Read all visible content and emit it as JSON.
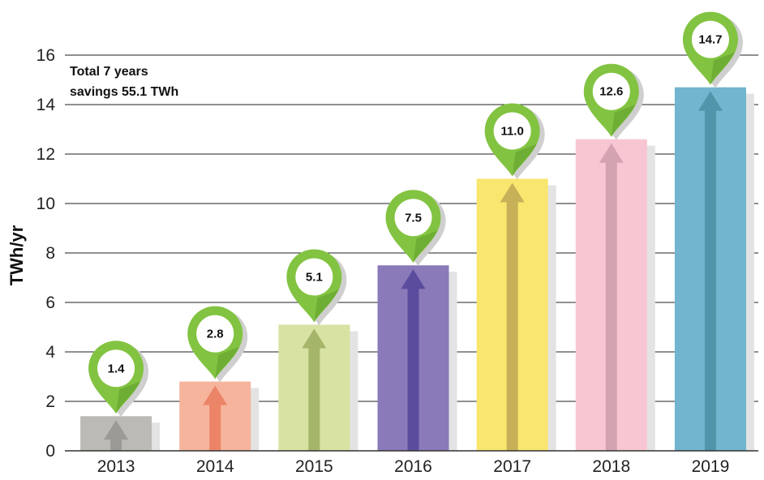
{
  "chart_data": {
    "type": "bar",
    "title": "",
    "xlabel": "",
    "ylabel": "TWh/yr",
    "ylim": [
      0,
      16
    ],
    "yticks": [
      "0",
      "2",
      "4",
      "6",
      "8",
      "10",
      "12",
      "14",
      "16"
    ],
    "grid": true,
    "categories": [
      "2013",
      "2014",
      "2015",
      "2016",
      "2017",
      "2018",
      "2019"
    ],
    "values": [
      1.4,
      2.8,
      5.1,
      7.5,
      11.0,
      12.6,
      14.7
    ],
    "data_labels": [
      "1.4",
      "2.8",
      "5.1",
      "7.5",
      "11.0",
      "12.6",
      "14.7"
    ],
    "annotation": [
      "Total 7 years",
      "savings 55.1 TWh"
    ],
    "colors": {
      "bars": [
        "#bcbab4",
        "#f6b49c",
        "#d8e2a2",
        "#8a7ab9",
        "#f8e66e",
        "#f7c6d2",
        "#71b5ce"
      ],
      "arrows": [
        "#9c9a96",
        "#ec8467",
        "#a5b56a",
        "#5b4c9e",
        "#c6b158",
        "#d4a3b2",
        "#5195aa"
      ],
      "pin": "#82c341",
      "pin_dark": "#5f9d2c"
    }
  }
}
